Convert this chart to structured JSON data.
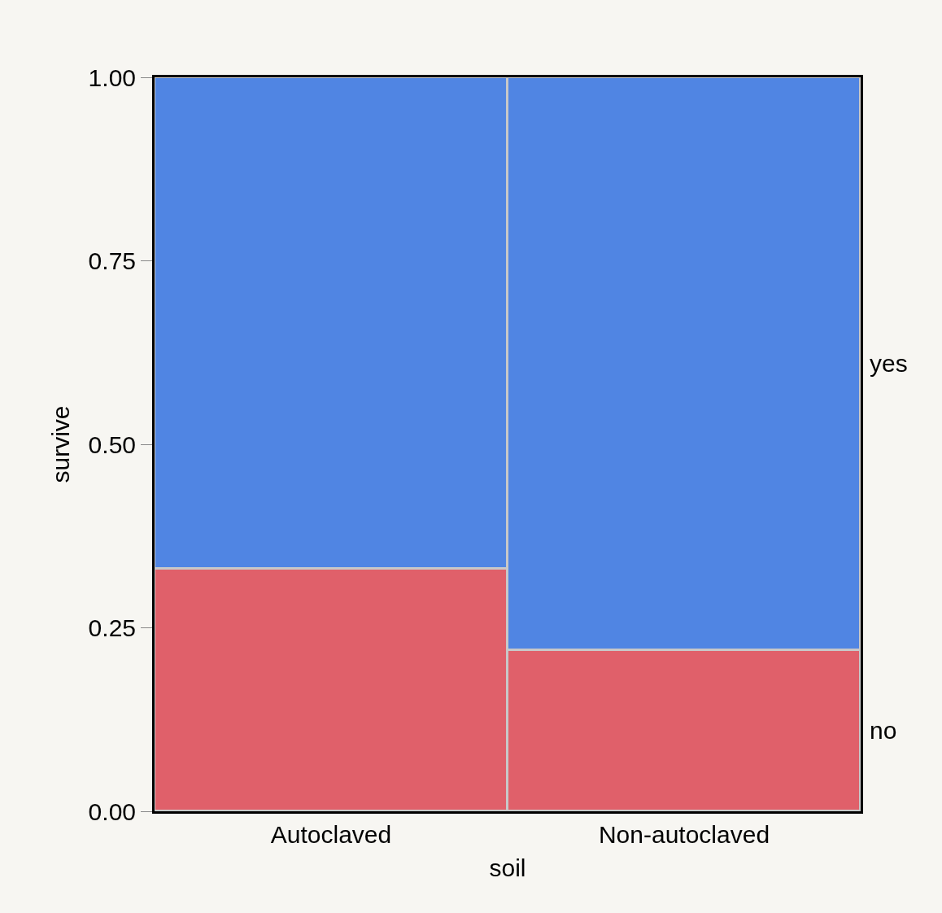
{
  "chart_data": {
    "type": "bar",
    "stacked": true,
    "xlabel": "soil",
    "ylabel": "survive",
    "categories": [
      "Autoclaved",
      "Non-autoclaved"
    ],
    "series": [
      {
        "name": "no",
        "color": "#e0606a",
        "values": [
          0.33,
          0.22
        ]
      },
      {
        "name": "yes",
        "color": "#5085e3",
        "values": [
          0.67,
          0.78
        ]
      }
    ],
    "ylim": [
      0,
      1
    ],
    "yticks": [
      {
        "value": 0,
        "label": "0.00"
      },
      {
        "value": 0.25,
        "label": "0.25"
      },
      {
        "value": 0.5,
        "label": "0.50"
      },
      {
        "value": 0.75,
        "label": "0.75"
      },
      {
        "value": 1,
        "label": "1.00"
      }
    ],
    "legend": false
  }
}
